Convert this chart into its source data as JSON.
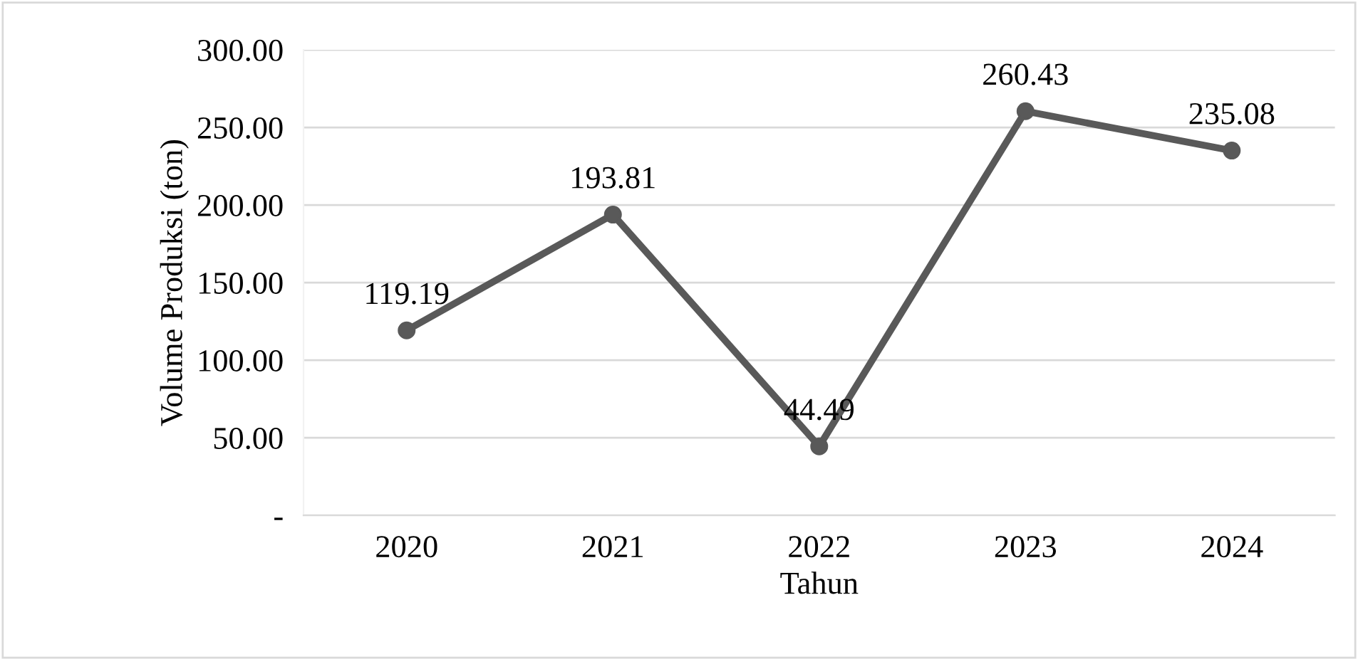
{
  "chart_data": {
    "type": "line",
    "xlabel": "Tahun",
    "ylabel": "Volume Produksi (ton)",
    "categories": [
      "2020",
      "2021",
      "2022",
      "2023",
      "2024"
    ],
    "series": [
      {
        "color": "#595959",
        "values": [
          119.19,
          193.81,
          44.49,
          260.43,
          235.08
        ]
      }
    ],
    "ylim": [
      0,
      300
    ],
    "yticks": [
      {
        "value": 0,
        "label": "-"
      },
      {
        "value": 50,
        "label": "50.00"
      },
      {
        "value": 100,
        "label": "100.00"
      },
      {
        "value": 150,
        "label": "150.00"
      },
      {
        "value": 200,
        "label": "200.00"
      },
      {
        "value": 250,
        "label": "250.00"
      },
      {
        "value": 300,
        "label": "300.00"
      }
    ],
    "grid": "y",
    "data_labels": true,
    "marker": "circle",
    "line_style": "solid"
  }
}
